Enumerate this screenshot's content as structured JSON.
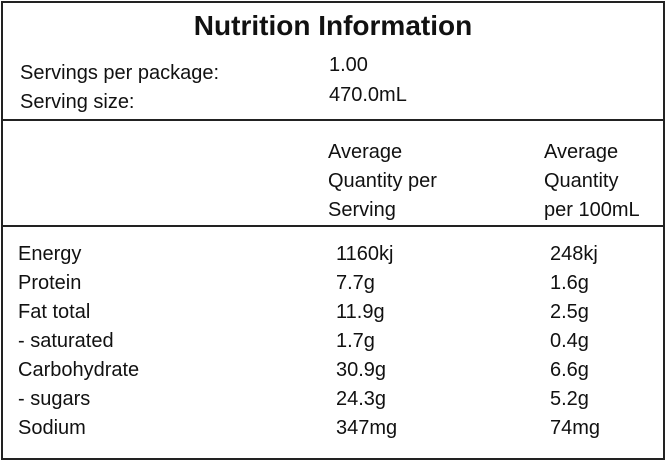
{
  "title": "Nutrition Information",
  "servings": {
    "per_package_label": "Servings per package:",
    "per_package_value": "1.00",
    "size_label": "Serving size:",
    "size_value": "470.0mL"
  },
  "columns": {
    "per_serving": [
      "Average",
      "Quantity per",
      "Serving"
    ],
    "per_100": [
      "Average",
      "Quantity",
      "per 100mL"
    ]
  },
  "rows": [
    {
      "name": "Energy",
      "per_serving": "1160kj",
      "per_100": "248kj"
    },
    {
      "name": "Protein",
      "per_serving": "7.7g",
      "per_100": "1.6g"
    },
    {
      "name": "Fat total",
      "per_serving": "11.9g",
      "per_100": "2.5g"
    },
    {
      "name": "- saturated",
      "per_serving": "1.7g",
      "per_100": "0.4g"
    },
    {
      "name": "Carbohydrate",
      "per_serving": "30.9g",
      "per_100": "6.6g"
    },
    {
      "name": "- sugars",
      "per_serving": "24.3g",
      "per_100": "5.2g"
    },
    {
      "name": "Sodium",
      "per_serving": "347mg",
      "per_100": "74mg"
    }
  ]
}
